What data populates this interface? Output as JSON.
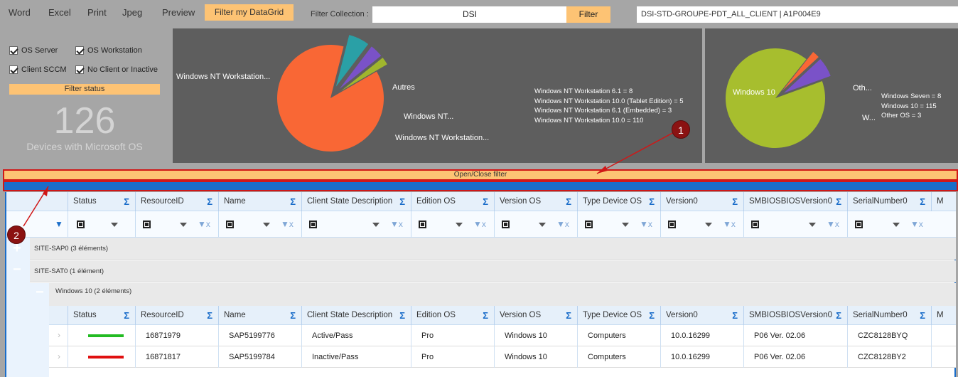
{
  "menu": {
    "items": [
      "Word",
      "Excel",
      "Print",
      "Jpeg",
      "Preview"
    ],
    "filter_grid": "Filter my DataGrid",
    "filter_collection_label": "Filter Collection :",
    "filter_collection_value": "DSI",
    "filter_button": "Filter",
    "collection_name": "DSI-STD-GROUPE-PDT_ALL_CLIENT  |  A1P004E9"
  },
  "checkboxes": {
    "os_server": "OS Server",
    "os_workstation": "OS Workstation",
    "client_sccm": "Client SCCM",
    "no_client": "No Client or Inactive"
  },
  "filter_status": "Filter status",
  "count": "126",
  "count_label": "Devices with Microsoft OS",
  "chart_data": [
    {
      "type": "pie",
      "labels": [
        "Windows NT Workstation...",
        "Autres",
        "Windows NT...",
        "Windows NT Workstation..."
      ],
      "legend": [
        "Windows NT Workstation 6.1 = 8",
        "Windows NT Workstation 10.0 (Tablet Edition) = 5",
        "Windows NT Workstation 6.1 (Embedded) = 3",
        "Windows NT Workstation 10.0 = 110"
      ],
      "values": [
        110,
        8,
        5,
        3
      ],
      "colors": [
        "#f96735",
        "#2aa0a6",
        "#7a52c8",
        "#a0b62d"
      ]
    },
    {
      "type": "pie",
      "labels": [
        "Windows 10",
        "Oth...",
        "W..."
      ],
      "legend": [
        "Windows Seven = 8",
        "Windows 10 = 115",
        "Other OS = 3"
      ],
      "values": [
        115,
        3,
        8
      ],
      "colors": [
        "#a7be2e",
        "#f96735",
        "#7a52c8"
      ]
    }
  ],
  "open_close": "Open/Close filter",
  "columns": [
    "Status",
    "ResourceID",
    "Name",
    "Client State Description",
    "Edition OS",
    "Version OS",
    "Type Device OS",
    "Version0",
    "SMBIOSBIOSVersion0",
    "SerialNumber0",
    "M"
  ],
  "groups": {
    "g1": "SITE-SAP0 (3 éléments)",
    "g2": "SITE-SAT0 (1 élément)",
    "g3": "Windows 10 (2 éléments)"
  },
  "rows": [
    {
      "status_color": "#22bb22",
      "resource": "16871979",
      "name": "SAP5199776",
      "state": "Active/Pass",
      "edition": "Pro",
      "version": "Windows 10",
      "type": "Computers",
      "version0": "10.0.16299",
      "bios": "P06 Ver. 02.06",
      "serial": "CZC8128BYQ"
    },
    {
      "status_color": "#e01010",
      "resource": "16871817",
      "name": "SAP5199784",
      "state": "Inactive/Pass",
      "edition": "Pro",
      "version": "Windows 10",
      "type": "Computers",
      "version0": "10.0.16299",
      "bios": "P06 Ver. 02.06",
      "serial": "CZC8128BY2"
    }
  ],
  "callouts": [
    "1",
    "2"
  ]
}
